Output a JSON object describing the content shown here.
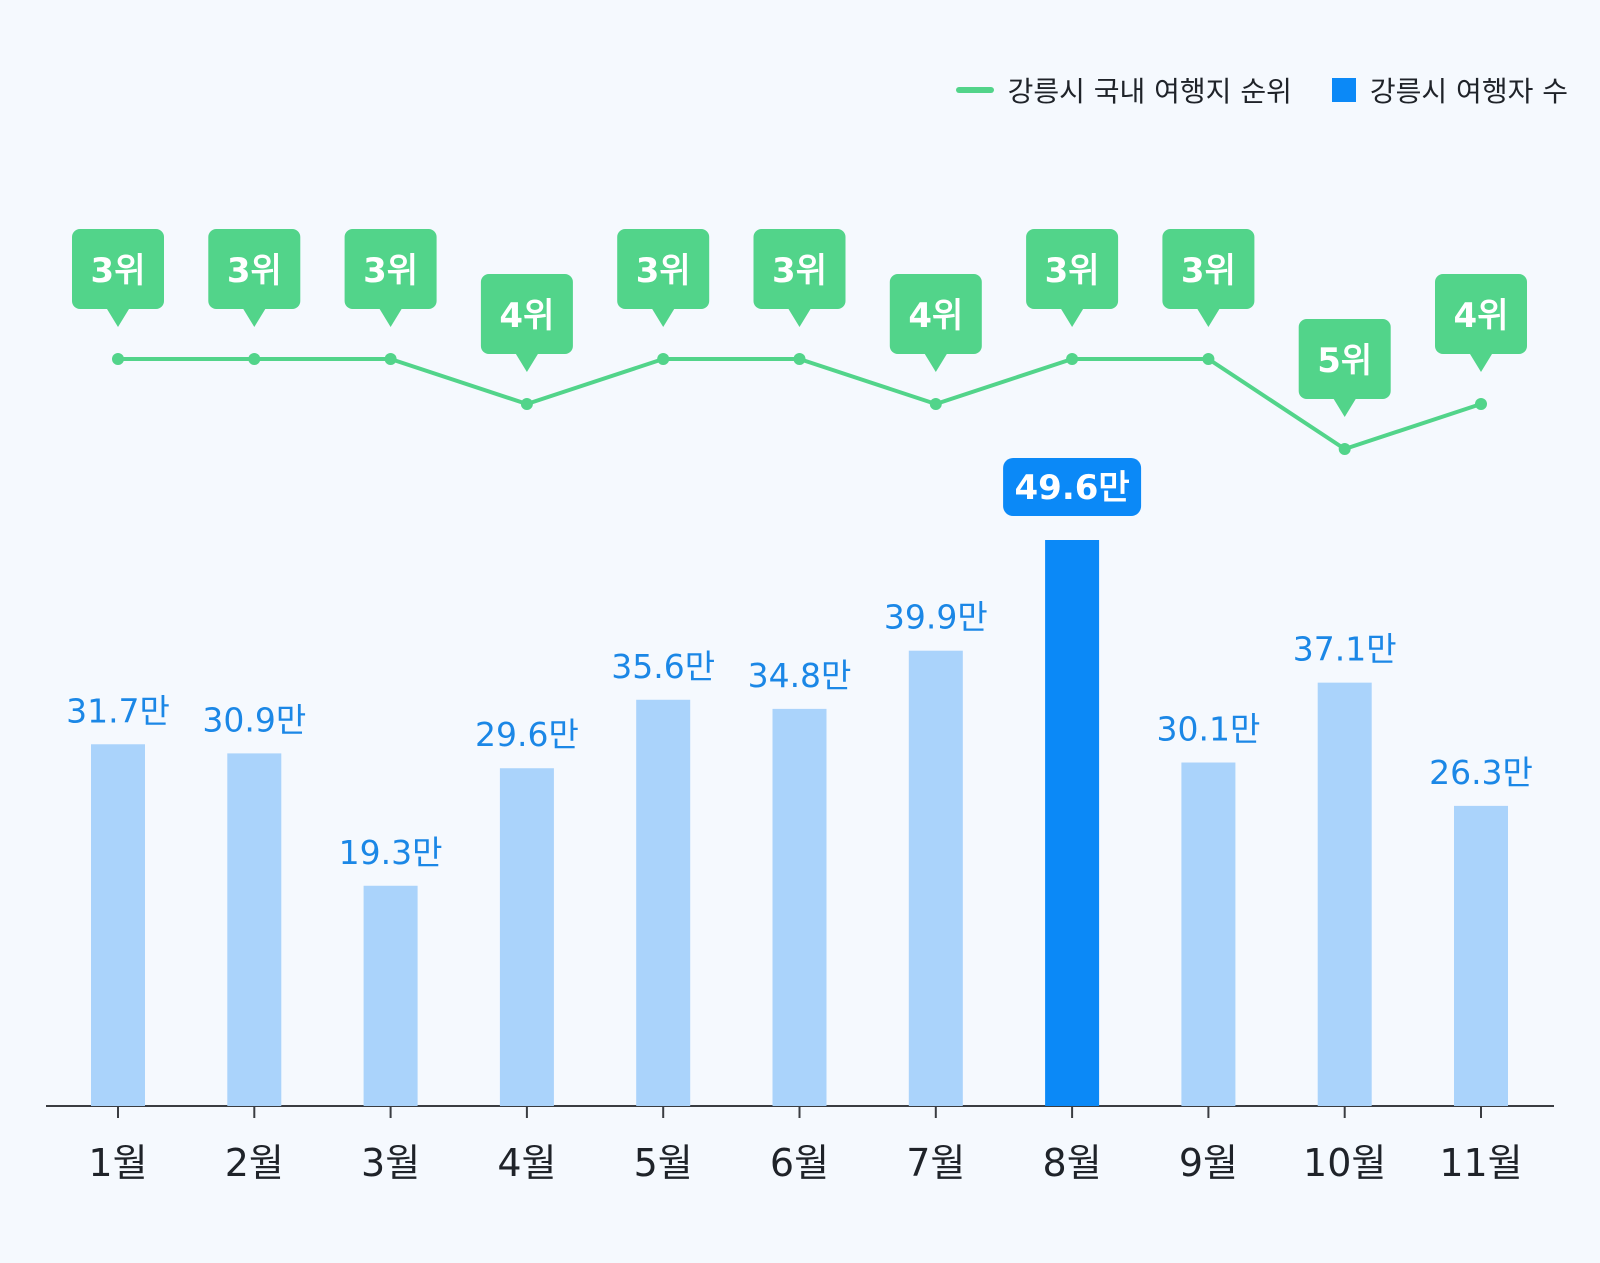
{
  "colors": {
    "background": "#f5f9fe",
    "bar": "#aad3fb",
    "bar_highlight": "#0b89f7",
    "bar_label": "#1b87e6",
    "line": "#52d48a",
    "rank_badge": "#52d48a",
    "axis": "#3a3d42",
    "month_label": "#1f2329"
  },
  "legend": {
    "rank_label": "강릉시 국내 여행지 순위",
    "visitors_label": "강릉시 여행자 수"
  },
  "chart_data": {
    "type": "bar",
    "categories": [
      "1월",
      "2월",
      "3월",
      "4월",
      "5월",
      "6월",
      "7월",
      "8월",
      "9월",
      "10월",
      "11월"
    ],
    "series": [
      {
        "name": "강릉시 여행자 수",
        "type": "bar",
        "unit": "만",
        "values": [
          31.7,
          30.9,
          19.3,
          29.6,
          35.6,
          34.8,
          39.9,
          49.6,
          30.1,
          37.1,
          26.3
        ],
        "labels": [
          "31.7만",
          "30.9만",
          "19.3만",
          "29.6만",
          "35.6만",
          "34.8만",
          "39.9만",
          "49.6만",
          "30.1만",
          "37.1만",
          "26.3만"
        ],
        "highlight_index": 7
      },
      {
        "name": "강릉시 국내 여행지 순위",
        "type": "line",
        "values": [
          3,
          3,
          3,
          4,
          3,
          3,
          4,
          3,
          3,
          5,
          4
        ],
        "labels": [
          "3위",
          "3위",
          "3위",
          "4위",
          "3위",
          "3위",
          "4위",
          "3위",
          "3위",
          "5위",
          "4위"
        ]
      }
    ],
    "ylim": [
      0,
      49.6
    ],
    "rank_range": [
      3,
      5
    ],
    "legend_position": "top-right",
    "grid": false
  }
}
